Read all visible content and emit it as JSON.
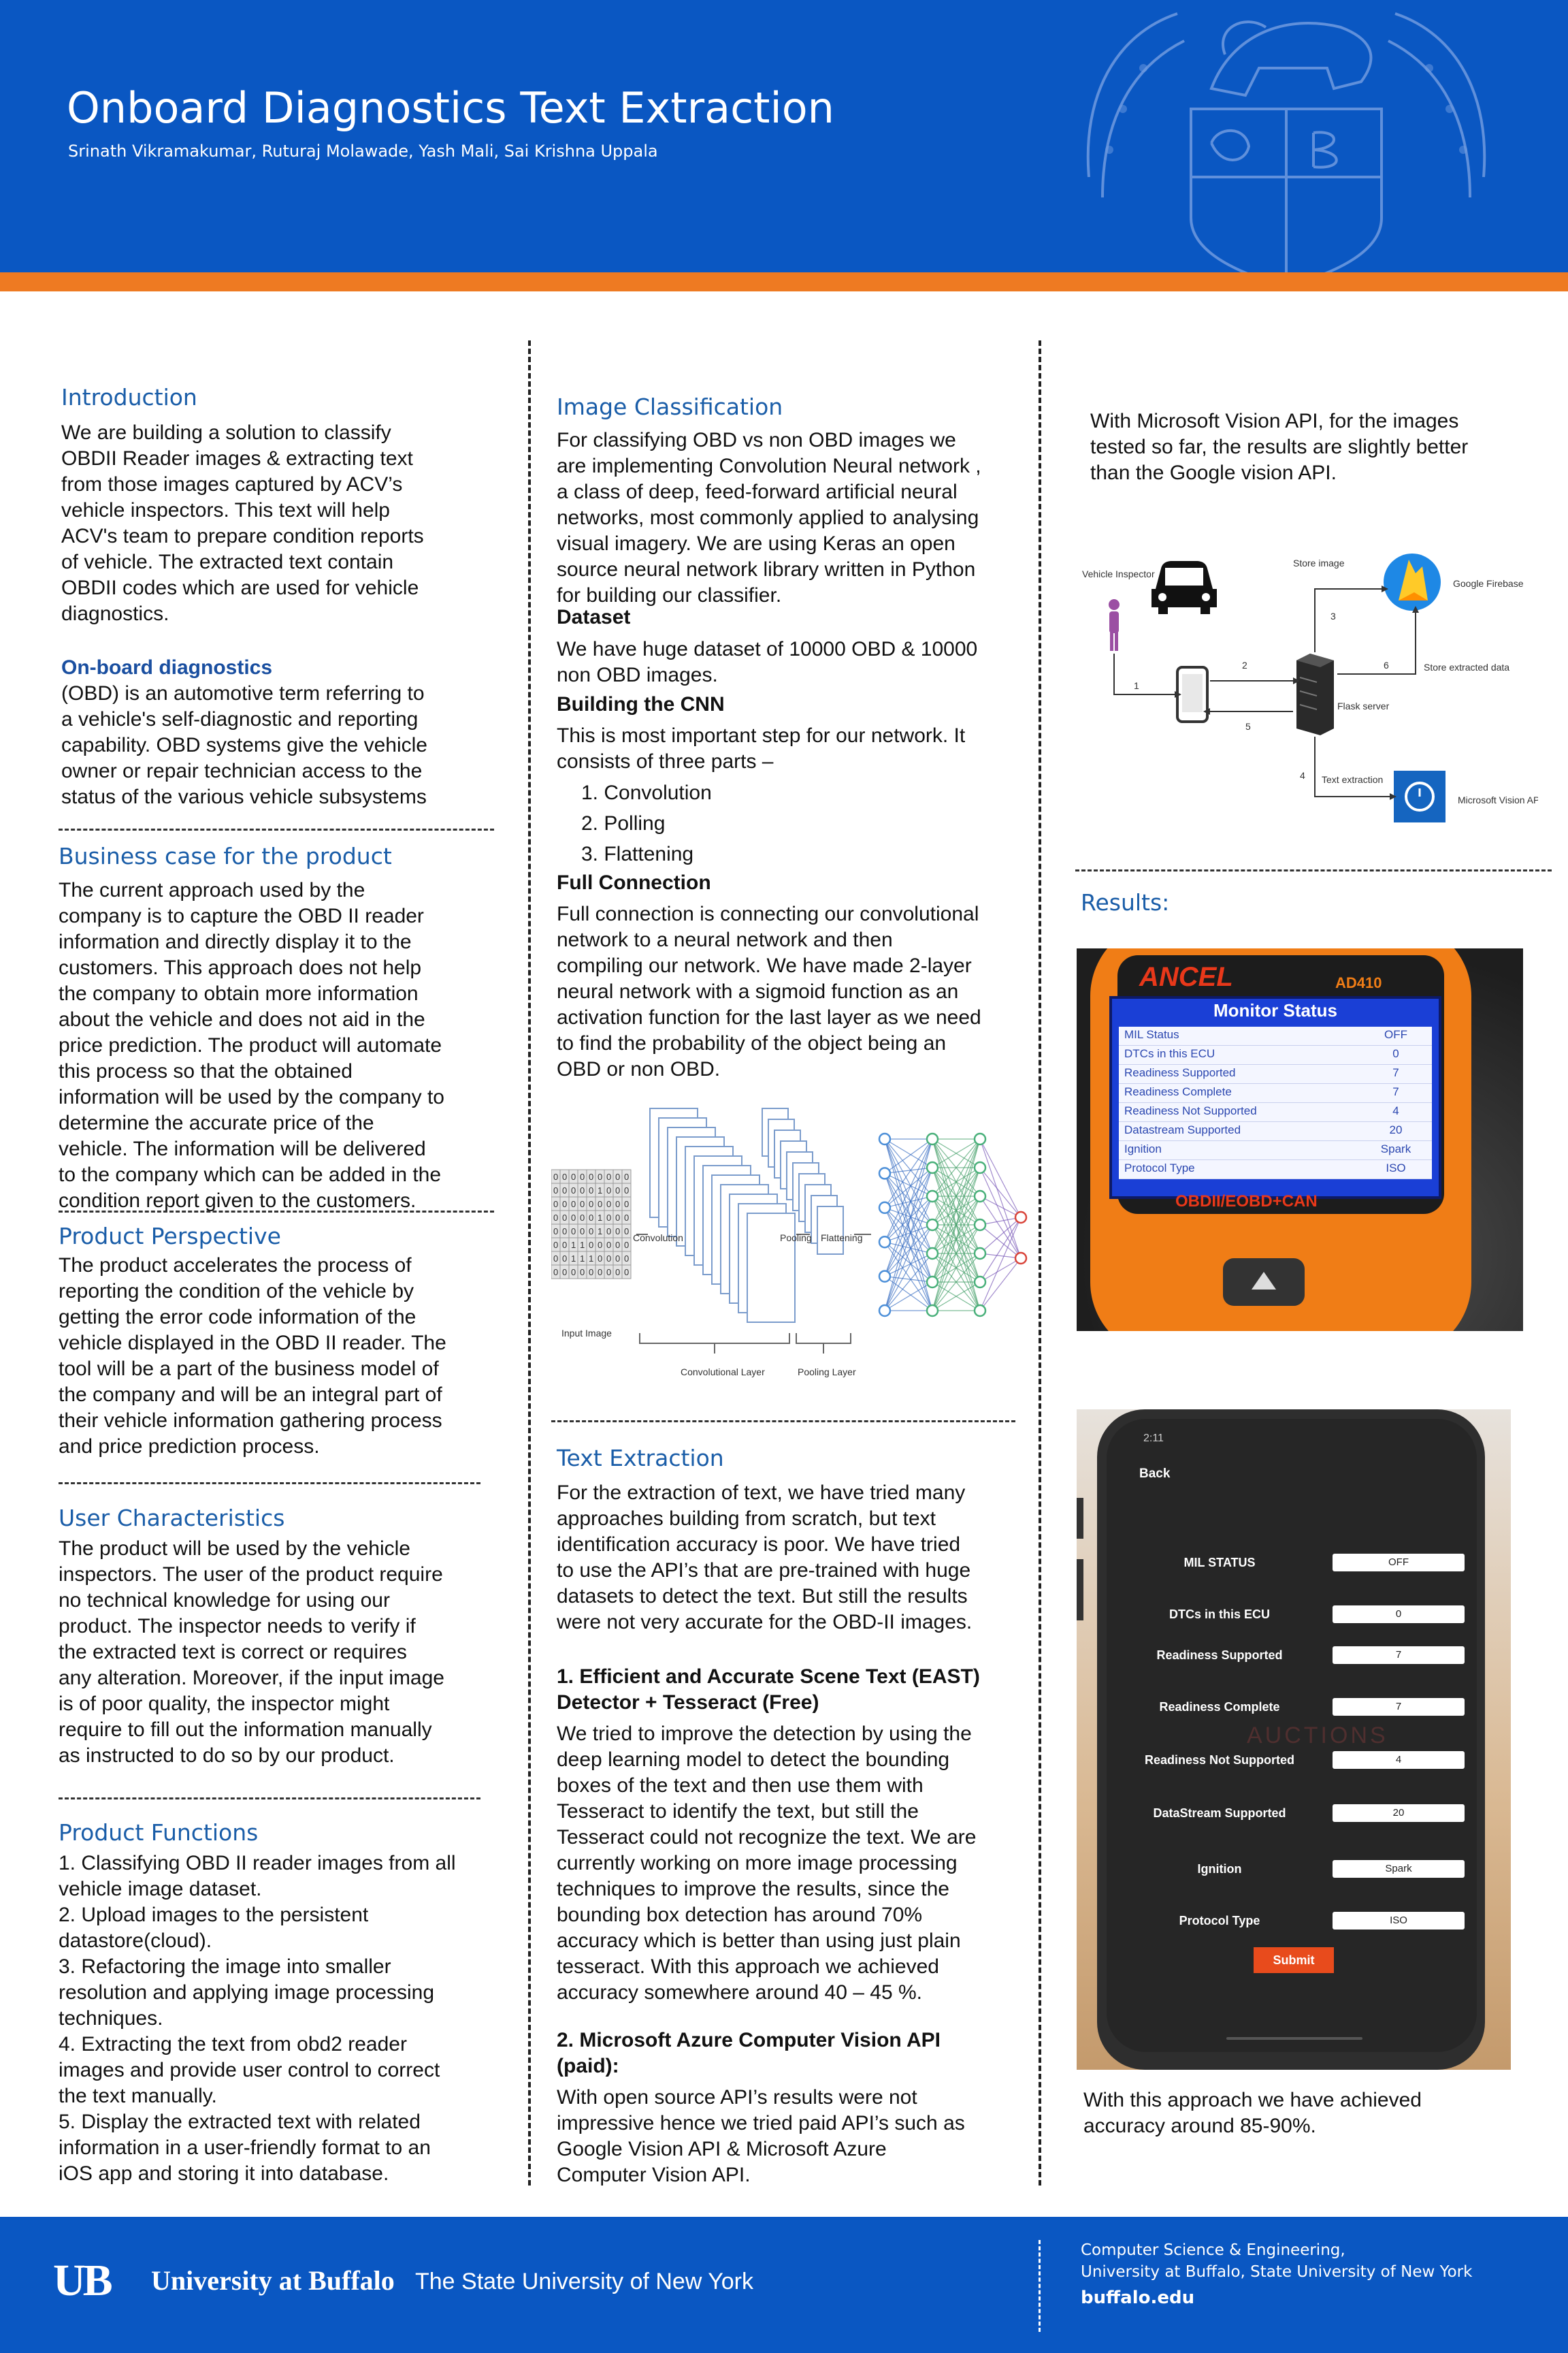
{
  "header": {
    "title": "Onboard Diagnostics Text Extraction",
    "authors": "Srinath Vikramakumar, Ruturaj Molawade, Yash Mali, Sai Krishna Uppala",
    "colors": {
      "header_blue": "#0a57c2",
      "stripe_orange": "#ee7a22",
      "heading_blue": "#1a5da8"
    }
  },
  "col1": {
    "intro": {
      "heading": "Introduction",
      "lines": [
        "We are building a solution to classify",
        "OBDII Reader images & extracting text",
        "from those images captured by ACV’s",
        "vehicle inspectors. This text will help",
        "ACV's team to prepare condition reports",
        "of vehicle. The extracted text contain",
        "OBDII codes which are used for vehicle",
        "diagnostics."
      ]
    },
    "obd": {
      "term": "On-board diagnostics",
      "lines": [
        "(OBD) is an automotive term referring to",
        "a vehicle's self-diagnostic and reporting",
        "capability. OBD systems give the vehicle",
        "owner or repair technician access to the",
        "status of the various vehicle subsystems"
      ]
    },
    "business": {
      "heading": "Business case for the product",
      "lines": [
        "The current approach used by the",
        "company is to capture the OBD II reader",
        "information and directly display it to the",
        "customers. This approach does not help",
        "the company to obtain more information",
        "about the vehicle and does not aid in the",
        "price prediction. The product will automate",
        "this process so that the obtained",
        "information will be used by the company to",
        "determine the accurate price of the",
        "vehicle. The information will be delivered",
        "to the company which can be added in the",
        "condition report given to the customers."
      ]
    },
    "perspective": {
      "heading": "Product Perspective",
      "lines": [
        "The product accelerates the process of",
        "reporting the condition of the vehicle by",
        "getting the error code information of the",
        "vehicle displayed in the OBD II reader. The",
        "tool will be a part of the business model of",
        "the company and will be an integral part of",
        "their vehicle information gathering process",
        "and price prediction process."
      ]
    },
    "users": {
      "heading": "User Characteristics",
      "lines": [
        "The product will be used by the vehicle",
        "inspectors. The user of the product require",
        "no technical knowledge for using our",
        "product. The inspector needs to verify if",
        "the extracted text is correct or requires",
        "any alteration. Moreover, if the input image",
        "is of poor quality, the inspector might",
        "require to fill out the information manually",
        "as instructed to do so by our product."
      ]
    },
    "functions": {
      "heading": "Product Functions",
      "lines": [
        "1. Classifying OBD II reader images from all",
        "vehicle image dataset.",
        "2. Upload images to the persistent",
        "datastore(cloud).",
        "3. Refactoring the image into smaller",
        "resolution and applying image processing",
        "techniques.",
        "4. Extracting the text from obd2 reader",
        "images and provide user control to correct",
        "the text manually.",
        "5. Display the extracted text with related",
        "information in a user-friendly format to an",
        "iOS app and storing it into database."
      ]
    }
  },
  "col2": {
    "classification": {
      "heading": "Image Classification",
      "lines": [
        "For classifying OBD vs non OBD images we",
        "are implementing Convolution Neural network ,",
        "a class of deep, feed-forward artificial neural",
        "networks, most commonly applied to analysing",
        "visual imagery. We are using Keras an open",
        "source neural network library written in Python",
        "for building our classifier."
      ],
      "dataset_heading": "Dataset",
      "dataset_lines": [
        "We have huge dataset of 10000 OBD & 10000",
        "non OBD images."
      ],
      "cnn_heading": "Building the CNN",
      "cnn_lines": [
        "This is most important step for our network. It",
        "consists of three parts –"
      ],
      "steps": [
        "1. Convolution",
        "2. Polling",
        "3. Flattening"
      ],
      "fc_heading": "Full Connection",
      "fc_lines": [
        "Full connection is connecting our convolutional",
        "network to a neural network and then",
        "compiling our network. We have made 2-layer",
        "neural network with a sigmoid function as an",
        "activation function for the last layer as we need",
        "to find the probability of the object being an",
        "OBD or non OBD."
      ]
    },
    "cnn_diagram": {
      "labels": {
        "input": "Input Image",
        "conv": "Convolution",
        "pool": "Pooling",
        "flat": "Flattening",
        "conv_layer": "Convolutional Layer",
        "pool_layer": "Pooling Layer"
      },
      "matrix": [
        "000000000",
        "000001000",
        "000000000",
        "000001000",
        "000001000",
        "001100000",
        "001110000",
        "000000000"
      ]
    },
    "extraction": {
      "heading": "Text Extraction",
      "lines": [
        "For the extraction of text, we have tried many",
        "approaches building from scratch, but text",
        "identification accuracy is poor. We have tried",
        "to use the API’s that are pre-trained with huge",
        "datasets to detect the text. But still the results",
        "were not very accurate for the OBD-II images."
      ],
      "east_heading_lines": [
        "1. Efficient and Accurate Scene Text (EAST)",
        "Detector + Tesseract (Free)"
      ],
      "east_lines": [
        "We tried to improve the detection by using the",
        "deep learning model to detect the bounding",
        "boxes of the text and then use them with",
        "Tesseract to identify the text, but still the",
        "Tesseract could not recognize the text. We are",
        "currently working on more image processing",
        "techniques to improve the results, since the",
        "bounding box detection has around 70%",
        "accuracy which is better than using just plain",
        "tesseract. With this approach we achieved",
        "accuracy somewhere around 40 – 45 %."
      ],
      "azure_heading_lines": [
        "2. Microsoft Azure Computer Vision API",
        "(paid):"
      ],
      "azure_lines": [
        "With open source API’s results were not",
        "impressive hence we tried paid API’s such as",
        "Google Vision API & Microsoft Azure",
        "Computer Vision API."
      ]
    }
  },
  "col3": {
    "intro_lines": [
      "With Microsoft Vision API, for the images",
      "tested so far, the results are slightly better",
      "than the Google vision API."
    ],
    "arch": {
      "vehicle_inspector": "Vehicle Inspector",
      "store_image": "Store image",
      "firebase": "Google Firebase",
      "store_extracted": "Store extracted data",
      "flask": "Flask server",
      "text_extraction": "Text  extraction",
      "ms_vision": "Microsoft Vision API",
      "n1": "1",
      "n2": "2",
      "n3": "3",
      "n4": "4",
      "n5": "5",
      "n6": "6"
    },
    "results_heading": "Results:",
    "reader": {
      "brand": "ANCEL",
      "model": "AD410",
      "screen_title": "Monitor Status",
      "rows": [
        {
          "label": "MIL Status",
          "value": "OFF"
        },
        {
          "label": "DTCs in this ECU",
          "value": "0"
        },
        {
          "label": "Readiness Supported",
          "value": "7"
        },
        {
          "label": "Readiness Complete",
          "value": "7"
        },
        {
          "label": "Readiness Not Supported",
          "value": "4"
        },
        {
          "label": "Datastream Supported",
          "value": "20"
        },
        {
          "label": "Ignition",
          "value": "Spark"
        },
        {
          "label": "Protocol Type",
          "value": "ISO"
        }
      ],
      "footer_text": "OBDII/EOBD+CAN"
    },
    "phone": {
      "time": "2:11",
      "back": "Back",
      "watermark": "AUCTIONS",
      "fields": [
        {
          "label": "MIL STATUS",
          "value": "OFF"
        },
        {
          "label": "DTCs in this ECU",
          "value": "0"
        },
        {
          "label": "Readiness Supported",
          "value": "7"
        },
        {
          "label": "Readiness Complete",
          "value": "7"
        },
        {
          "label": "Readiness Not Supported",
          "value": "4"
        },
        {
          "label": "DataStream Supported",
          "value": "20"
        },
        {
          "label": "Ignition",
          "value": "Spark"
        },
        {
          "label": "Protocol Type",
          "value": "ISO"
        }
      ],
      "submit": "Submit"
    },
    "outro_lines": [
      "With this approach we have achieved",
      "accuracy around 85-90%."
    ]
  },
  "footer": {
    "logo": "UB",
    "university": "University at Buffalo",
    "state": "The State University of New York",
    "dept_line1": "Computer Science & Engineering,",
    "dept_line2": "University at Buffalo, State University of New York",
    "url": "buffalo.edu"
  }
}
